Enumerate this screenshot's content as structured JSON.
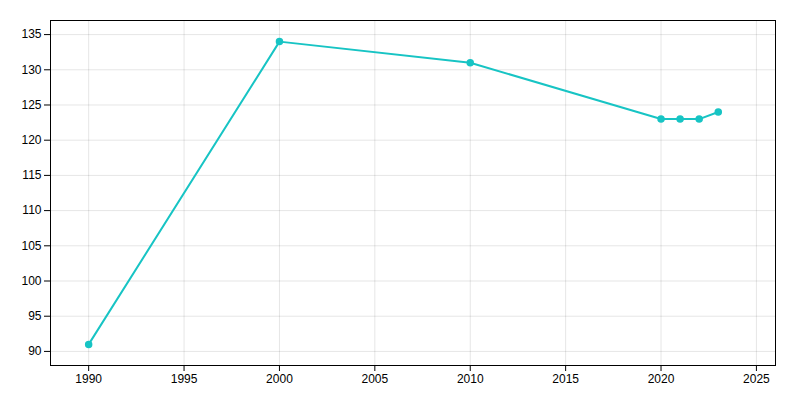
{
  "chart_data": {
    "type": "line",
    "x": [
      1990,
      2000,
      2010,
      2020,
      2021,
      2022,
      2023
    ],
    "values": [
      91,
      134,
      131,
      123,
      123,
      123,
      124
    ],
    "color": "#17c4c4",
    "marker": "circle",
    "xlim": [
      1988,
      2026
    ],
    "ylim": [
      88,
      137
    ],
    "xticks": [
      1990,
      1995,
      2000,
      2005,
      2010,
      2015,
      2020,
      2025
    ],
    "yticks": [
      90,
      95,
      100,
      105,
      110,
      115,
      120,
      125,
      130,
      135
    ],
    "grid": true
  }
}
